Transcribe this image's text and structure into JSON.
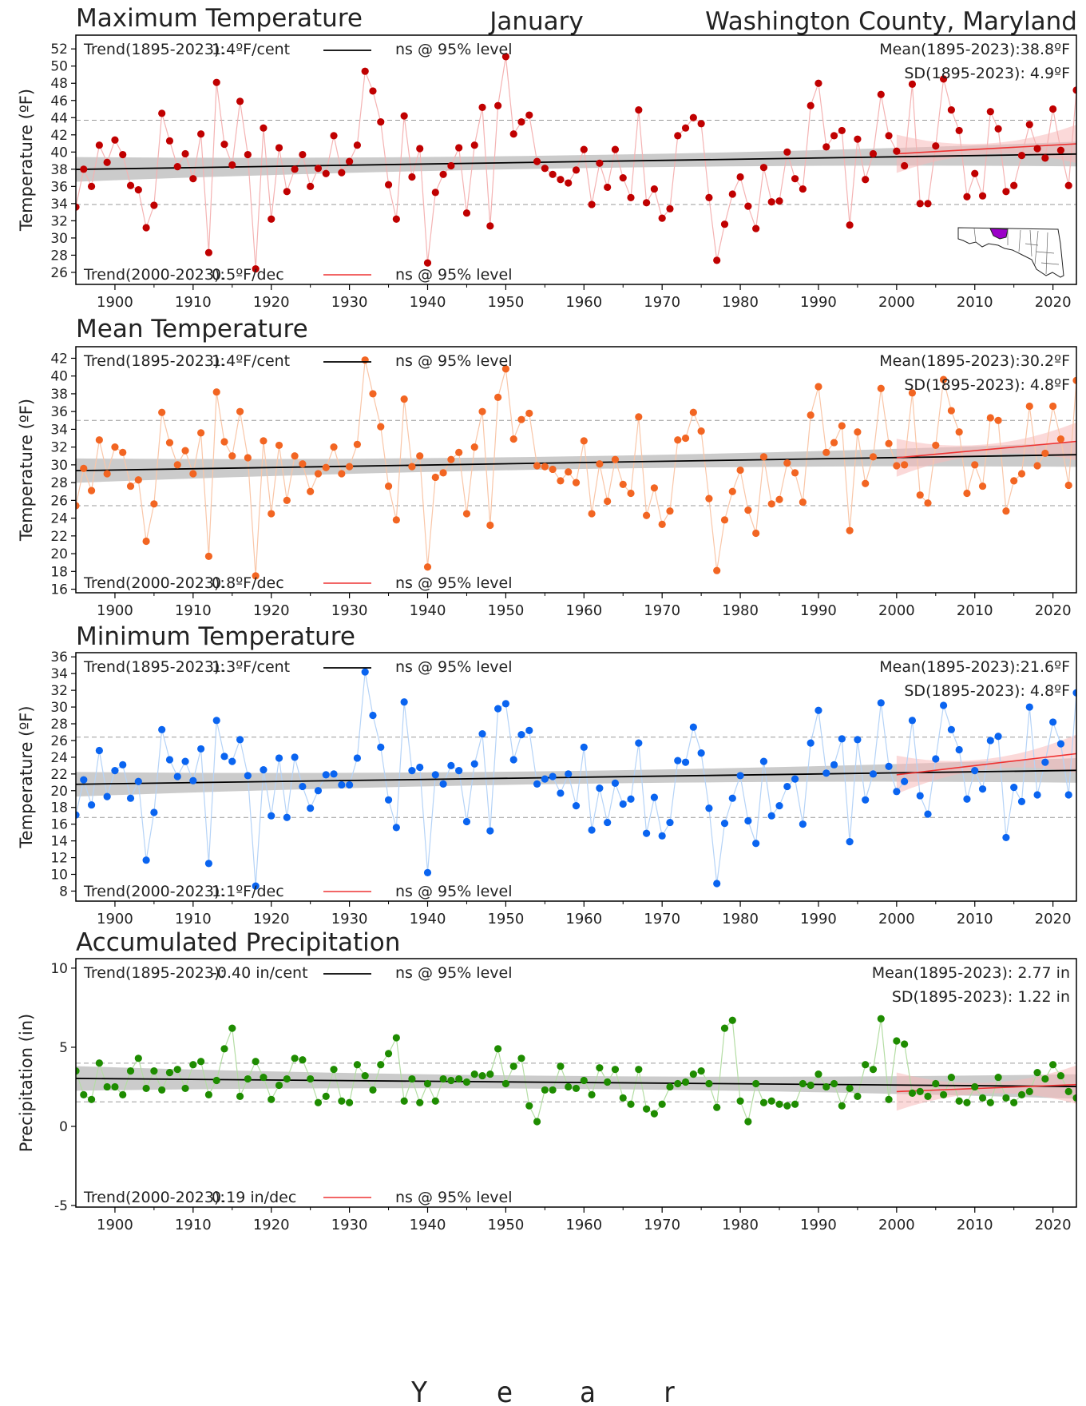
{
  "header": {
    "month": "January",
    "location": "Washington County, Maryland"
  },
  "x_axis_label_letters": [
    "Y",
    "e",
    "a",
    "r"
  ],
  "colors": {
    "max": "#c00000",
    "mean": "#f26522",
    "min": "#0a64f0",
    "precip": "#1e8c00",
    "max_line": "#f4b3b3",
    "mean_line": "#f9c6a8",
    "min_line": "#b5d3f7",
    "precip_line": "#b4dda4",
    "trend_long": "#000000",
    "trend_recent": "#ee3333"
  },
  "chart_data": [
    {
      "type": "scatter",
      "title": "Maximum Temperature",
      "ylabel": "Temperature (ºF)",
      "xlim": [
        1895,
        2023
      ],
      "ylim": [
        24.6,
        53.6
      ],
      "xticks": [
        1900,
        1910,
        1920,
        1930,
        1940,
        1950,
        1960,
        1970,
        1980,
        1990,
        2000,
        2010,
        2020
      ],
      "yticks": [
        26,
        28,
        30,
        32,
        34,
        36,
        38,
        40,
        42,
        44,
        46,
        48,
        50,
        52
      ],
      "start_year": 1895,
      "values": [
        33.6,
        38.0,
        36.0,
        40.8,
        38.8,
        41.4,
        39.7,
        36.1,
        35.6,
        31.2,
        33.8,
        44.5,
        41.3,
        38.3,
        39.8,
        36.9,
        42.1,
        28.3,
        48.1,
        40.9,
        38.5,
        45.9,
        39.7,
        26.4,
        42.8,
        32.2,
        40.5,
        35.4,
        38.0,
        39.7,
        36.0,
        38.1,
        37.5,
        41.9,
        37.6,
        38.9,
        40.8,
        49.4,
        47.1,
        43.5,
        36.2,
        32.2,
        44.2,
        37.1,
        40.4,
        27.1,
        35.3,
        37.4,
        38.4,
        40.5,
        32.9,
        40.8,
        45.2,
        31.4,
        45.4,
        51.1,
        42.1,
        43.5,
        44.3,
        38.9,
        38.1,
        37.4,
        36.8,
        36.4,
        37.9,
        40.3,
        33.9,
        38.7,
        35.9,
        40.3,
        37.0,
        34.7,
        44.9,
        34.1,
        35.7,
        32.3,
        33.4,
        41.9,
        42.8,
        44.0,
        43.3,
        34.7,
        27.4,
        31.6,
        35.1,
        37.1,
        33.7,
        31.1,
        38.2,
        34.2,
        34.3,
        40.0,
        36.9,
        35.7,
        45.4,
        48.0,
        40.6,
        41.9,
        42.5,
        31.5,
        41.5,
        36.8,
        39.8,
        46.7,
        41.9,
        40.1,
        38.4,
        47.9,
        34.0,
        34.0,
        40.7,
        48.5,
        44.9,
        42.5,
        34.8,
        37.5,
        34.9,
        44.7,
        42.7,
        35.4,
        36.1,
        39.6,
        43.2,
        40.4,
        39.3,
        45.0,
        40.2,
        36.1,
        47.2
      ],
      "trend_long": {
        "label": "Trend(1895-2023):",
        "value": "1.4ºF/cent",
        "sig": "ns @ 95% level",
        "y0": 37.98,
        "y1": 39.77
      },
      "trend_recent": {
        "label": "Trend(2000-2023):",
        "value": "0.5ºF/dec",
        "sig": "ns @ 95% level",
        "x0": 2000,
        "x1": 2023,
        "y0": 39.8,
        "y1": 40.95
      },
      "mean_label": "Mean(1895-2023):38.8ºF",
      "sd_label": "SD(1895-2023): 4.9ºF",
      "mean": 38.8,
      "sd": 4.9
    },
    {
      "type": "scatter",
      "title": "Mean Temperature",
      "ylabel": "Temperature (ºF)",
      "xlim": [
        1895,
        2023
      ],
      "ylim": [
        15.6,
        43.3
      ],
      "xticks": [
        1900,
        1910,
        1920,
        1930,
        1940,
        1950,
        1960,
        1970,
        1980,
        1990,
        2000,
        2010,
        2020
      ],
      "yticks": [
        16,
        18,
        20,
        22,
        24,
        26,
        28,
        30,
        32,
        34,
        36,
        38,
        40,
        42
      ],
      "start_year": 1895,
      "values": [
        25.4,
        29.6,
        27.1,
        32.8,
        29.0,
        32.0,
        31.4,
        27.6,
        28.3,
        21.4,
        25.6,
        35.9,
        32.5,
        30.0,
        31.6,
        29.0,
        33.6,
        19.7,
        38.2,
        32.6,
        31.0,
        36.0,
        30.8,
        17.5,
        32.7,
        24.5,
        32.2,
        26.0,
        31.0,
        30.1,
        27.0,
        29.0,
        29.7,
        32.0,
        29.0,
        29.8,
        32.3,
        41.8,
        38.0,
        34.3,
        27.6,
        23.8,
        37.4,
        29.8,
        31.0,
        18.5,
        28.6,
        29.1,
        30.6,
        31.4,
        24.5,
        32.0,
        36.0,
        23.2,
        37.6,
        40.8,
        32.9,
        35.1,
        35.8,
        29.9,
        29.8,
        29.5,
        28.2,
        29.2,
        28.0,
        32.7,
        24.5,
        30.1,
        25.9,
        30.6,
        27.8,
        26.8,
        35.4,
        24.3,
        27.4,
        23.3,
        24.8,
        32.8,
        33.0,
        35.9,
        33.8,
        26.2,
        18.1,
        23.8,
        27.0,
        29.4,
        24.9,
        22.3,
        30.9,
        25.6,
        26.1,
        30.2,
        29.1,
        25.8,
        35.6,
        38.8,
        31.4,
        32.5,
        34.4,
        22.6,
        33.7,
        27.9,
        30.9,
        38.6,
        32.4,
        29.9,
        30.0,
        38.1,
        26.6,
        25.7,
        32.2,
        39.6,
        36.1,
        33.7,
        26.8,
        30.0,
        27.6,
        35.3,
        35.0,
        24.8,
        28.2,
        29.0,
        36.6,
        29.9,
        31.3,
        36.6,
        32.9,
        27.7,
        39.5
      ],
      "trend_long": {
        "label": "Trend(1895-2023):",
        "value": "1.4ºF/cent",
        "sig": "ns @ 95% level",
        "y0": 29.35,
        "y1": 31.14
      },
      "trend_recent": {
        "label": "Trend(2000-2023):",
        "value": "0.8ºF/dec",
        "sig": "ns @ 95% level",
        "x0": 2000,
        "x1": 2023,
        "y0": 30.8,
        "y1": 32.64
      },
      "mean_label": "Mean(1895-2023):30.2ºF",
      "sd_label": "SD(1895-2023): 4.8ºF",
      "mean": 30.2,
      "sd": 4.8
    },
    {
      "type": "scatter",
      "title": "Minimum Temperature",
      "ylabel": "Temperature (ºF)",
      "xlim": [
        1895,
        2023
      ],
      "ylim": [
        6.8,
        36.5
      ],
      "xticks": [
        1900,
        1910,
        1920,
        1930,
        1940,
        1950,
        1960,
        1970,
        1980,
        1990,
        2000,
        2010,
        2020
      ],
      "yticks": [
        8,
        10,
        12,
        14,
        16,
        18,
        20,
        22,
        24,
        26,
        28,
        30,
        32,
        34,
        36
      ],
      "start_year": 1895,
      "values": [
        17.1,
        21.3,
        18.3,
        24.8,
        19.3,
        22.4,
        23.1,
        19.1,
        21.1,
        11.7,
        17.4,
        27.3,
        23.7,
        21.7,
        23.5,
        21.2,
        25.0,
        11.3,
        28.4,
        24.1,
        23.5,
        26.1,
        21.8,
        8.6,
        22.5,
        17.0,
        23.9,
        16.8,
        24.0,
        20.5,
        17.9,
        20.0,
        21.9,
        22.0,
        20.7,
        20.7,
        23.9,
        34.2,
        29.0,
        25.2,
        18.9,
        15.6,
        30.6,
        22.4,
        22.8,
        10.2,
        21.9,
        20.8,
        23.0,
        22.4,
        16.3,
        23.2,
        26.8,
        15.2,
        29.8,
        30.4,
        23.7,
        26.7,
        27.2,
        20.8,
        21.4,
        21.7,
        19.7,
        22.0,
        18.2,
        25.2,
        15.3,
        20.3,
        16.2,
        20.9,
        18.4,
        19.0,
        25.7,
        14.9,
        19.2,
        14.6,
        16.2,
        23.6,
        23.4,
        27.6,
        24.5,
        17.9,
        8.9,
        16.1,
        19.1,
        21.8,
        16.4,
        13.7,
        23.5,
        17.0,
        18.2,
        20.5,
        21.4,
        16.0,
        25.7,
        29.6,
        22.1,
        23.1,
        26.2,
        13.9,
        26.1,
        18.9,
        22.0,
        30.5,
        22.9,
        19.9,
        21.1,
        28.4,
        19.4,
        17.2,
        23.8,
        30.2,
        27.3,
        24.9,
        19.0,
        22.4,
        20.2,
        26.0,
        26.5,
        14.4,
        20.4,
        18.7,
        30.0,
        19.5,
        23.4,
        28.2,
        25.6,
        19.5,
        31.7
      ],
      "trend_long": {
        "label": "Trend(1895-2023):",
        "value": "1.3ºF/cent",
        "sig": "ns @ 95% level",
        "y0": 20.77,
        "y1": 22.43
      },
      "trend_recent": {
        "label": "Trend(2000-2023):",
        "value": "1.1ºF/dec",
        "sig": "ns @ 95% level",
        "x0": 2000,
        "x1": 2023,
        "y0": 21.9,
        "y1": 24.43
      },
      "mean_label": "Mean(1895-2023):21.6ºF",
      "sd_label": "SD(1895-2023): 4.8ºF",
      "mean": 21.6,
      "sd": 4.8
    },
    {
      "type": "scatter",
      "title": "Accumulated Precipitation",
      "ylabel": "Precipitation (in)",
      "xlim": [
        1895,
        2023
      ],
      "ylim": [
        -5.1,
        10.6
      ],
      "xticks": [
        1900,
        1910,
        1920,
        1930,
        1940,
        1950,
        1960,
        1970,
        1980,
        1990,
        2000,
        2010,
        2020
      ],
      "yticks": [
        -5,
        0,
        5,
        10
      ],
      "start_year": 1895,
      "values": [
        3.5,
        2.0,
        1.7,
        4.0,
        2.5,
        2.5,
        2.0,
        3.5,
        4.3,
        2.4,
        3.5,
        2.3,
        3.4,
        3.6,
        2.4,
        3.9,
        4.1,
        2.0,
        2.9,
        4.9,
        6.2,
        1.9,
        3.0,
        4.1,
        3.1,
        1.7,
        2.6,
        3.0,
        4.3,
        4.2,
        3.0,
        1.5,
        1.9,
        3.6,
        1.6,
        1.5,
        3.9,
        3.2,
        2.3,
        3.9,
        4.6,
        5.6,
        1.6,
        3.0,
        1.5,
        2.7,
        1.6,
        3.0,
        2.9,
        3.0,
        2.8,
        3.3,
        3.2,
        3.3,
        4.9,
        2.7,
        3.8,
        4.3,
        1.3,
        0.3,
        2.3,
        2.3,
        3.8,
        2.5,
        2.4,
        2.9,
        2.0,
        3.7,
        2.8,
        3.6,
        1.8,
        1.4,
        3.6,
        1.1,
        0.8,
        1.4,
        2.5,
        2.7,
        2.8,
        3.3,
        3.5,
        2.7,
        1.2,
        6.2,
        6.7,
        1.6,
        0.3,
        2.7,
        1.5,
        1.6,
        1.4,
        1.3,
        1.4,
        2.7,
        2.6,
        3.3,
        2.5,
        2.7,
        1.3,
        2.4,
        1.9,
        3.9,
        3.6,
        6.8,
        1.7,
        5.4,
        5.2,
        2.1,
        2.2,
        1.9,
        2.7,
        2.0,
        3.1,
        1.6,
        1.5,
        2.5,
        1.8,
        1.5,
        3.1,
        1.8,
        1.5,
        2.0,
        2.2,
        3.4,
        3.0,
        3.9,
        3.2,
        2.2,
        1.8
      ],
      "trend_long": {
        "label": "Trend(1895-2023):",
        "value": "-0.40 in/cent",
        "sig": "ns @ 95% level",
        "y0": 3.03,
        "y1": 2.52
      },
      "trend_recent": {
        "label": "Trend(2000-2023):",
        "value": "0.19 in/dec",
        "sig": "ns @ 95% level",
        "x0": 2000,
        "x1": 2023,
        "y0": 2.2,
        "y1": 2.64
      },
      "mean_label": "Mean(1895-2023): 2.77 in",
      "sd_label": "SD(1895-2023): 1.22 in",
      "mean": 2.77,
      "sd": 1.22
    }
  ]
}
